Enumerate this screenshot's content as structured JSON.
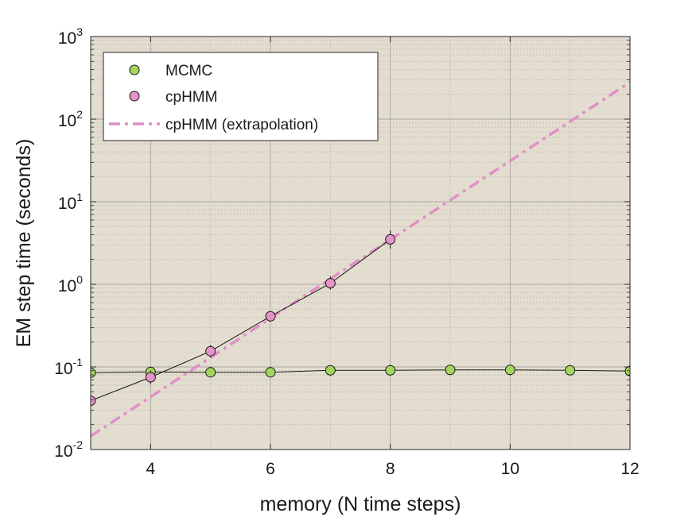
{
  "chart_data": {
    "type": "line",
    "title": "",
    "xlabel": "memory (N time steps)",
    "ylabel": "EM step time (seconds)",
    "xlim": [
      3,
      12
    ],
    "ylim": [
      0.01,
      1000
    ],
    "yscale": "log",
    "x_ticks": [
      "4",
      "6",
      "8",
      "10",
      "12"
    ],
    "y_ticks": [
      {
        "base": "10",
        "exp": "-2"
      },
      {
        "base": "10",
        "exp": "-1"
      },
      {
        "base": "10",
        "exp": "0"
      },
      {
        "base": "10",
        "exp": "1"
      },
      {
        "base": "10",
        "exp": "2"
      },
      {
        "base": "10",
        "exp": "3"
      }
    ],
    "grid": true,
    "minor_grid": true,
    "legend_position": "top-left",
    "colors": {
      "background": "#e3ddd0",
      "MCMC": "#a4d65e",
      "cpHMM": "#e592c6",
      "cpHMM_extrapolation": "#e28fc7"
    },
    "series": [
      {
        "name": "MCMC",
        "style": "markers-line",
        "x": [
          3,
          4,
          5,
          6,
          7,
          8,
          9,
          10,
          11,
          12
        ],
        "y": [
          0.085,
          0.087,
          0.086,
          0.086,
          0.091,
          0.091,
          0.092,
          0.092,
          0.091,
          0.089
        ],
        "err_low": [
          0.083,
          0.076,
          0.083,
          0.083,
          0.078,
          0.079,
          0.08,
          0.079,
          0.084,
          0.084
        ],
        "err_high": [
          0.088,
          0.095,
          0.089,
          0.089,
          0.104,
          0.106,
          0.105,
          0.106,
          0.099,
          0.095
        ]
      },
      {
        "name": "cpHMM",
        "style": "markers-line",
        "x": [
          3,
          4,
          5,
          6,
          7,
          8
        ],
        "y": [
          0.039,
          0.075,
          0.155,
          0.41,
          1.03,
          3.5
        ],
        "err_low": [
          0.039,
          0.062,
          0.13,
          0.36,
          0.86,
          2.7
        ],
        "err_high": [
          0.039,
          0.091,
          0.185,
          0.47,
          1.25,
          4.5
        ]
      },
      {
        "name": "cpHMM (extrapolation)",
        "style": "dash-dot",
        "x": [
          3,
          12
        ],
        "y": [
          0.0145,
          280
        ]
      }
    ]
  }
}
